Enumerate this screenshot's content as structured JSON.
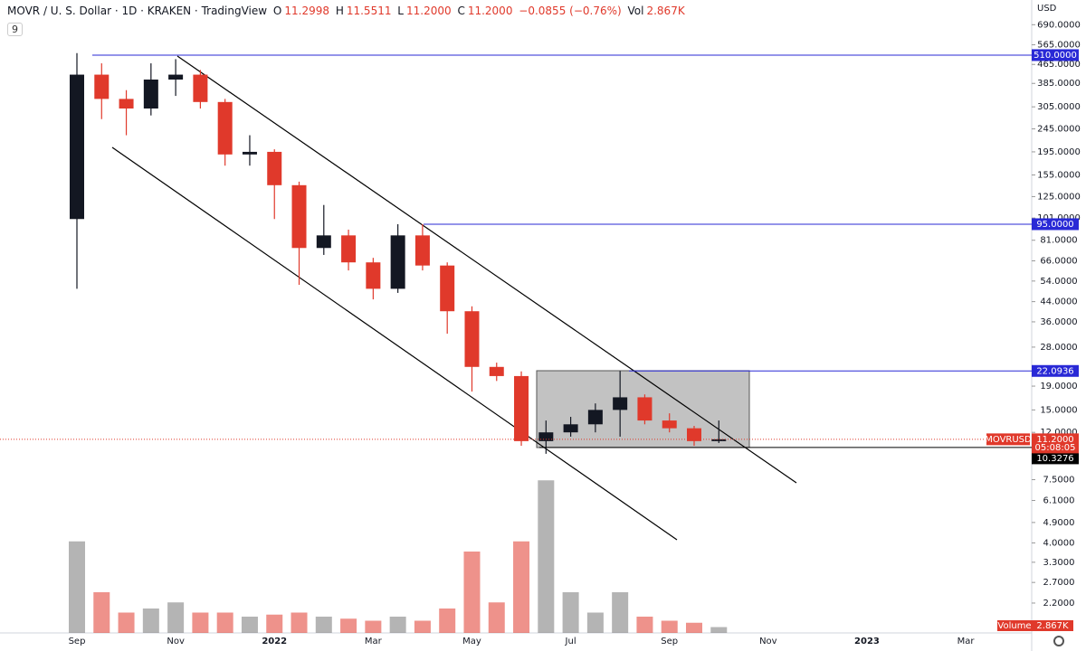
{
  "header": {
    "title": "MOVR / U. S. Dollar · 1D · KRAKEN · TradingView",
    "o_label": "O",
    "o": "11.2998",
    "h_label": "H",
    "h": "11.5511",
    "l_label": "L",
    "l": "11.2000",
    "c_label": "C",
    "c": "11.2000",
    "change": "−0.0855 (−0.76%)",
    "vol_label": "Vol",
    "vol": "2.867K",
    "interval_count": "9",
    "currency": "USD"
  },
  "chart_data": {
    "type": "candlestick",
    "categories": [
      "Sep",
      null,
      null,
      null,
      "Nov",
      null,
      null,
      null,
      "2022",
      null,
      null,
      null,
      "Mar",
      null,
      null,
      null,
      "May",
      null,
      null,
      null,
      "Jul",
      null,
      null,
      null,
      "Sep",
      null,
      null,
      null,
      "Nov",
      null,
      null,
      null,
      "2023",
      null,
      null,
      null,
      "Mar",
      null,
      null
    ],
    "open": [
      100,
      420,
      330,
      300,
      400,
      420,
      320,
      190,
      195,
      140,
      75,
      85,
      65,
      50,
      85,
      63,
      40,
      23,
      21,
      11,
      12,
      13,
      15,
      17,
      13.5,
      12.5,
      11,
      null,
      null,
      null,
      null,
      null,
      null,
      null,
      null,
      null,
      null,
      null,
      null
    ],
    "high": [
      520,
      470,
      360,
      470,
      490,
      440,
      330,
      230,
      200,
      145,
      115,
      90,
      68,
      95,
      95,
      65,
      42,
      24,
      22,
      13.5,
      14,
      16,
      22.0936,
      17.5,
      14.5,
      12.8,
      13.5,
      null,
      null,
      null,
      null,
      null,
      null,
      null,
      null,
      null,
      null,
      null,
      null
    ],
    "low": [
      50,
      270,
      230,
      280,
      340,
      300,
      170,
      170,
      100,
      52,
      70,
      60,
      45,
      48,
      60,
      32,
      18,
      20,
      10.5,
      9.7,
      11.5,
      12,
      11.5,
      13,
      12,
      10.5,
      10.8,
      null,
      null,
      null,
      null,
      null,
      null,
      null,
      null,
      null,
      null,
      null,
      null
    ],
    "close": [
      420,
      330,
      300,
      400,
      420,
      320,
      190,
      195,
      140,
      75,
      85,
      65,
      50,
      85,
      63,
      40,
      23,
      21,
      11,
      12,
      13,
      15,
      17,
      13.5,
      12.5,
      11,
      11.2,
      null,
      null,
      null,
      null,
      null,
      null,
      null,
      null,
      null,
      null,
      null,
      null
    ],
    "volume": [
      45,
      20,
      10,
      12,
      15,
      10,
      10,
      8,
      9,
      10,
      8,
      7,
      6,
      8,
      6,
      12,
      40,
      15,
      45,
      75,
      20,
      10,
      20,
      8,
      6,
      5,
      2.867,
      null,
      null,
      null,
      null,
      null,
      null,
      null,
      null,
      null,
      null,
      null,
      null
    ],
    "volume_label": "Volume",
    "up_color": "#131722",
    "down_color": "#e0392b",
    "log_scale": true,
    "ylim": [
      1.635,
      882
    ],
    "vlim": [
      0,
      80
    ],
    "yticks": [
      {
        "value": 690,
        "label": "690.0000"
      },
      {
        "value": 565,
        "label": "565.0000"
      },
      {
        "value": 465,
        "label": "465.0000"
      },
      {
        "value": 385,
        "label": "385.0000"
      },
      {
        "value": 305,
        "label": "305.0000"
      },
      {
        "value": 245,
        "label": "245.0000"
      },
      {
        "value": 195,
        "label": "195.0000"
      },
      {
        "value": 155,
        "label": "155.0000"
      },
      {
        "value": 125,
        "label": "125.0000"
      },
      {
        "value": 101,
        "label": "101.0000"
      },
      {
        "value": 81,
        "label": "81.0000"
      },
      {
        "value": 66,
        "label": "66.0000"
      },
      {
        "value": 54,
        "label": "54.0000"
      },
      {
        "value": 44,
        "label": "44.0000"
      },
      {
        "value": 36,
        "label": "36.0000"
      },
      {
        "value": 28,
        "label": "28.0000"
      },
      {
        "value": 19,
        "label": "19.0000"
      },
      {
        "value": 15,
        "label": "15.0000"
      },
      {
        "value": 12,
        "label": "12.0000"
      },
      {
        "value": 7.5,
        "label": "7.5000"
      },
      {
        "value": 6.1,
        "label": "6.1000"
      },
      {
        "value": 4.9,
        "label": "4.9000"
      },
      {
        "value": 4,
        "label": "4.0000"
      },
      {
        "value": 3.3,
        "label": "3.3000"
      },
      {
        "value": 2.7,
        "label": "2.7000"
      },
      {
        "value": 2.2,
        "label": "2.2000"
      }
    ],
    "levels": [
      {
        "value": 510,
        "label": "510.0000",
        "color": "#2929d6"
      },
      {
        "value": 95,
        "label": "95.0000",
        "color": "#2929d6"
      },
      {
        "value": 22.0936,
        "label": "22.0936",
        "color": "#2929d6"
      },
      {
        "value": 10.3276,
        "label": "10.3276",
        "color": "#000000"
      }
    ],
    "last": {
      "value": 11.2,
      "label": "11.2000",
      "symbol": "MOVRUSD",
      "countdown": "05:08:05",
      "color": "#e0392b"
    }
  }
}
